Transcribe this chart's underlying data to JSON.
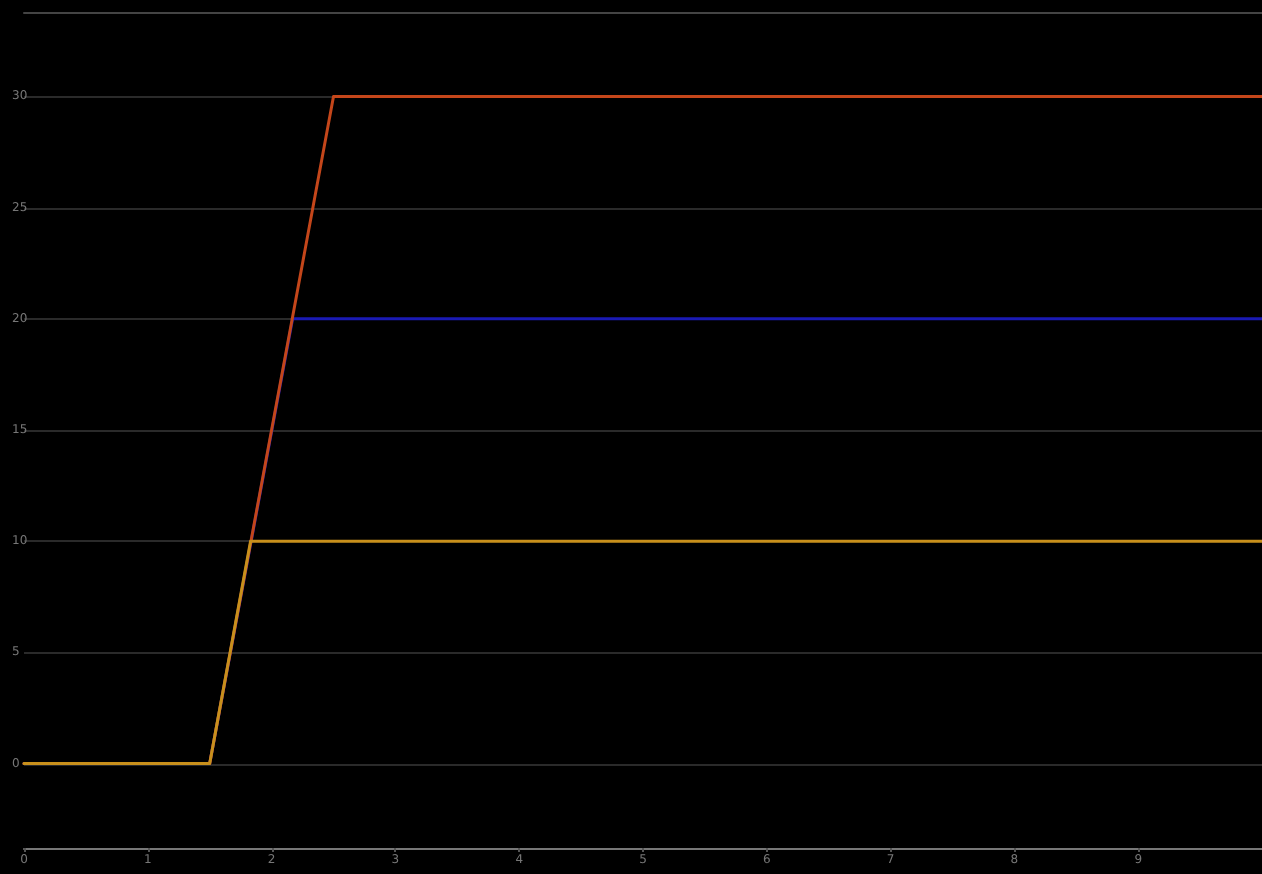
{
  "chart_data": {
    "type": "line",
    "series": [
      {
        "color": "#1a1ab4",
        "x": [
          0,
          1.5,
          2.17,
          10
        ],
        "values": [
          0,
          0,
          20,
          20
        ]
      },
      {
        "color": "#c4461a",
        "x": [
          0,
          1.5,
          2.5,
          10
        ],
        "values": [
          0,
          0,
          30,
          30
        ]
      },
      {
        "color": "#c8901c",
        "x": [
          0,
          1.5,
          1.83,
          10
        ],
        "values": [
          0,
          0,
          10,
          10
        ]
      }
    ],
    "xlim": [
      0,
      10
    ],
    "xticks": [
      0,
      1,
      2,
      3,
      4,
      5,
      6,
      7,
      8,
      9
    ],
    "ylim": [
      -3.8,
      33.8
    ],
    "yticks": [
      0,
      5,
      10,
      15,
      20,
      25,
      30
    ],
    "grid": "y",
    "marker": "none",
    "line_style": "solid"
  }
}
